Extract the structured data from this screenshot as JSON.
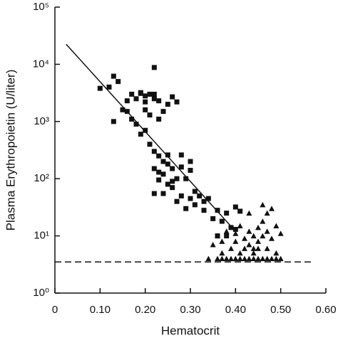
{
  "chart_data": {
    "type": "scatter",
    "xlabel": "Hematocrit",
    "ylabel": "Plasma Erythropoietin (U/liter)",
    "yscale": "log",
    "xlim": [
      0,
      0.6
    ],
    "ylim": [
      1,
      100000
    ],
    "xticks": [
      0,
      {
        "value": 0.1,
        "label": "0.10"
      },
      {
        "value": 0.2,
        "label": "0.20"
      },
      {
        "value": 0.3,
        "label": "0.30"
      },
      {
        "value": 0.4,
        "label": "0.40"
      },
      {
        "value": 0.5,
        "label": "0.50"
      },
      {
        "value": 0.6,
        "label": "0.60"
      }
    ],
    "yticks": [
      {
        "value": 1,
        "label": "10⁰"
      },
      {
        "value": 10,
        "label": "10¹"
      },
      {
        "value": 100,
        "label": "10²"
      },
      {
        "value": 1000,
        "label": "10³"
      },
      {
        "value": 10000,
        "label": "10⁴"
      },
      {
        "value": 100000,
        "label": "10⁵"
      }
    ],
    "series": [
      {
        "marker": "square",
        "color": "#111111",
        "x": [
          0.1,
          0.12,
          0.13,
          0.14,
          0.13,
          0.15,
          0.16,
          0.16,
          0.17,
          0.17,
          0.18,
          0.18,
          0.19,
          0.19,
          0.2,
          0.2,
          0.2,
          0.21,
          0.21,
          0.22,
          0.22,
          0.22,
          0.23,
          0.23,
          0.24,
          0.25,
          0.26,
          0.27,
          0.19,
          0.2,
          0.21,
          0.22,
          0.23,
          0.22,
          0.23,
          0.24,
          0.24,
          0.25,
          0.25,
          0.26,
          0.26,
          0.27,
          0.28,
          0.28,
          0.29,
          0.3,
          0.3,
          0.22,
          0.23,
          0.24,
          0.25,
          0.26,
          0.27,
          0.28,
          0.29,
          0.3,
          0.31,
          0.31,
          0.32,
          0.33,
          0.33,
          0.34,
          0.36,
          0.35,
          0.37,
          0.38,
          0.39,
          0.4,
          0.41,
          0.38,
          0.36,
          0.4
        ],
        "values": [
          3800,
          4000,
          6200,
          5000,
          1000,
          1600,
          1500,
          2300,
          3000,
          1100,
          900,
          2500,
          3200,
          3100,
          2800,
          2200,
          1600,
          3000,
          1300,
          8800,
          3000,
          2500,
          2300,
          1100,
          1500,
          2000,
          2700,
          2200,
          600,
          700,
          400,
          300,
          250,
          150,
          130,
          200,
          120,
          260,
          180,
          150,
          90,
          100,
          260,
          160,
          100,
          200,
          140,
          55,
          95,
          55,
          80,
          70,
          40,
          50,
          30,
          45,
          35,
          60,
          50,
          28,
          40,
          45,
          28,
          20,
          18,
          25,
          14,
          32,
          27,
          10,
          10,
          13
        ]
      },
      {
        "marker": "triangle",
        "color": "#111111",
        "x": [
          0.35,
          0.36,
          0.37,
          0.37,
          0.38,
          0.38,
          0.39,
          0.39,
          0.4,
          0.4,
          0.4,
          0.41,
          0.41,
          0.41,
          0.42,
          0.42,
          0.42,
          0.43,
          0.43,
          0.43,
          0.43,
          0.44,
          0.44,
          0.44,
          0.44,
          0.45,
          0.45,
          0.45,
          0.45,
          0.46,
          0.46,
          0.46,
          0.46,
          0.47,
          0.47,
          0.47,
          0.47,
          0.48,
          0.48,
          0.48,
          0.49,
          0.49,
          0.49,
          0.5,
          0.5,
          0.36,
          0.37,
          0.34
        ],
        "values": [
          7,
          10,
          5,
          8,
          12,
          4,
          4,
          6,
          8,
          4,
          11,
          15,
          5,
          4,
          9,
          6,
          4,
          25,
          12,
          7,
          4,
          10,
          6,
          5,
          4,
          14,
          8,
          6,
          4,
          35,
          18,
          10,
          4,
          25,
          12,
          6,
          4,
          30,
          9,
          4,
          15,
          5,
          4,
          11,
          4,
          4,
          4,
          4
        ]
      }
    ],
    "fit_line": {
      "x": [
        0.025,
        0.4
      ],
      "y": [
        22400,
        12
      ]
    },
    "hline": {
      "value": 3.5,
      "x": [
        0,
        0.573
      ]
    }
  }
}
